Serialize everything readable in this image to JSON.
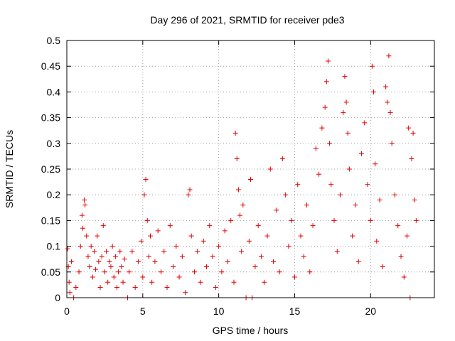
{
  "chart_data": {
    "type": "scatter",
    "title": "Day 296 of 2021, SRMTID for receiver pde3",
    "xlabel": "GPS time / hours",
    "ylabel": "SRMTID / TECUs",
    "xlim": [
      0,
      24.2
    ],
    "ylim": [
      0,
      0.5
    ],
    "grid": true,
    "x_ticks": [
      0,
      5,
      10,
      15,
      20
    ],
    "y_ticks": [
      0,
      0.05,
      0.1,
      0.15,
      0.2,
      0.25,
      0.3,
      0.35,
      0.4,
      0.45,
      0.5
    ],
    "y_tick_labels": [
      "0",
      "0.05",
      "0.1",
      "0.15",
      "0.2",
      "0.25",
      "0.3",
      "0.35",
      "0.4",
      "0.45",
      "0.5"
    ],
    "series": [
      {
        "name": "SRMTID",
        "color": "#e00000",
        "marker": "plus",
        "points": [
          [
            0.05,
            0.095
          ],
          [
            0.1,
            0.06
          ],
          [
            0.15,
            0.03
          ],
          [
            0.2,
            0.01
          ],
          [
            0.3,
            0.07
          ],
          [
            0.45,
            0.0
          ],
          [
            0.6,
            0.02
          ],
          [
            0.8,
            0.05
          ],
          [
            0.9,
            0.1
          ],
          [
            1.0,
            0.16
          ],
          [
            1.05,
            0.135
          ],
          [
            1.15,
            0.19
          ],
          [
            1.2,
            0.18
          ],
          [
            1.3,
            0.12
          ],
          [
            1.4,
            0.08
          ],
          [
            1.5,
            0.06
          ],
          [
            1.6,
            0.1
          ],
          [
            1.7,
            0.04
          ],
          [
            1.8,
            0.09
          ],
          [
            1.9,
            0.055
          ],
          [
            2.0,
            0.12
          ],
          [
            2.1,
            0.07
          ],
          [
            2.2,
            0.02
          ],
          [
            2.3,
            0.08
          ],
          [
            2.4,
            0.14
          ],
          [
            2.5,
            0.05
          ],
          [
            2.6,
            0.09
          ],
          [
            2.7,
            0.03
          ],
          [
            2.8,
            0.07
          ],
          [
            2.9,
            0.06
          ],
          [
            3.0,
            0.1
          ],
          [
            3.1,
            0.04
          ],
          [
            3.2,
            0.08
          ],
          [
            3.3,
            0.02
          ],
          [
            3.4,
            0.05
          ],
          [
            3.5,
            0.09
          ],
          [
            3.6,
            0.06
          ],
          [
            3.7,
            0.03
          ],
          [
            3.8,
            0.075
          ],
          [
            4.0,
            0.0
          ],
          [
            4.1,
            0.05
          ],
          [
            4.3,
            0.09
          ],
          [
            4.5,
            0.02
          ],
          [
            4.7,
            0.07
          ],
          [
            4.9,
            0.11
          ],
          [
            5.0,
            0.04
          ],
          [
            5.1,
            0.2
          ],
          [
            5.2,
            0.23
          ],
          [
            5.3,
            0.15
          ],
          [
            5.4,
            0.08
          ],
          [
            5.5,
            0.12
          ],
          [
            5.6,
            0.03
          ],
          [
            5.8,
            0.07
          ],
          [
            6.0,
            0.13
          ],
          [
            6.2,
            0.05
          ],
          [
            6.4,
            0.09
          ],
          [
            6.6,
            0.02
          ],
          [
            6.8,
            0.14
          ],
          [
            7.0,
            0.06
          ],
          [
            7.2,
            0.1
          ],
          [
            7.4,
            0.04
          ],
          [
            7.6,
            0.08
          ],
          [
            7.8,
            0.01
          ],
          [
            8.0,
            0.2
          ],
          [
            8.1,
            0.21
          ],
          [
            8.2,
            0.12
          ],
          [
            8.4,
            0.05
          ],
          [
            8.6,
            0.09
          ],
          [
            8.8,
            0.03
          ],
          [
            9.0,
            0.11
          ],
          [
            9.2,
            0.06
          ],
          [
            9.4,
            0.14
          ],
          [
            9.6,
            0.08
          ],
          [
            9.8,
            0.02
          ],
          [
            10.0,
            0.1
          ],
          [
            10.2,
            0.05
          ],
          [
            10.4,
            0.13
          ],
          [
            10.6,
            0.07
          ],
          [
            10.8,
            0.15
          ],
          [
            11.0,
            0.03
          ],
          [
            11.1,
            0.32
          ],
          [
            11.2,
            0.27
          ],
          [
            11.3,
            0.21
          ],
          [
            11.4,
            0.16
          ],
          [
            11.5,
            0.09
          ],
          [
            11.6,
            0.18
          ],
          [
            11.8,
            0.0
          ],
          [
            12.0,
            0.11
          ],
          [
            12.1,
            0.23
          ],
          [
            12.2,
            0.0
          ],
          [
            12.4,
            0.06
          ],
          [
            12.6,
            0.14
          ],
          [
            12.8,
            0.08
          ],
          [
            13.0,
            0.03
          ],
          [
            13.2,
            0.12
          ],
          [
            13.4,
            0.25
          ],
          [
            13.6,
            0.07
          ],
          [
            13.8,
            0.17
          ],
          [
            14.0,
            0.05
          ],
          [
            14.2,
            0.27
          ],
          [
            14.4,
            0.2
          ],
          [
            14.6,
            0.1
          ],
          [
            14.8,
            0.15
          ],
          [
            15.0,
            0.04
          ],
          [
            15.2,
            0.22
          ],
          [
            15.4,
            0.12
          ],
          [
            15.6,
            0.08
          ],
          [
            15.8,
            0.18
          ],
          [
            16.0,
            0.05
          ],
          [
            16.2,
            0.14
          ],
          [
            16.4,
            0.29
          ],
          [
            16.6,
            0.24
          ],
          [
            16.8,
            0.33
          ],
          [
            17.0,
            0.37
          ],
          [
            17.1,
            0.42
          ],
          [
            17.2,
            0.46
          ],
          [
            17.3,
            0.3
          ],
          [
            17.4,
            0.22
          ],
          [
            17.6,
            0.15
          ],
          [
            17.8,
            0.09
          ],
          [
            18.0,
            0.2
          ],
          [
            18.2,
            0.36
          ],
          [
            18.3,
            0.43
          ],
          [
            18.4,
            0.38
          ],
          [
            18.5,
            0.32
          ],
          [
            18.6,
            0.25
          ],
          [
            18.8,
            0.12
          ],
          [
            19.0,
            0.18
          ],
          [
            19.2,
            0.07
          ],
          [
            19.4,
            0.28
          ],
          [
            19.6,
            0.34
          ],
          [
            19.8,
            0.22
          ],
          [
            20.0,
            0.15
          ],
          [
            20.1,
            0.45
          ],
          [
            20.2,
            0.4
          ],
          [
            20.3,
            0.26
          ],
          [
            20.4,
            0.11
          ],
          [
            20.6,
            0.19
          ],
          [
            20.8,
            0.06
          ],
          [
            21.0,
            0.41
          ],
          [
            21.1,
            0.38
          ],
          [
            21.2,
            0.47
          ],
          [
            21.3,
            0.36
          ],
          [
            21.4,
            0.3
          ],
          [
            21.6,
            0.2
          ],
          [
            21.8,
            0.14
          ],
          [
            22.0,
            0.08
          ],
          [
            22.2,
            0.04
          ],
          [
            22.4,
            0.12
          ],
          [
            22.5,
            0.33
          ],
          [
            22.6,
            0.0
          ],
          [
            22.7,
            0.27
          ],
          [
            22.8,
            0.32
          ],
          [
            22.9,
            0.19
          ],
          [
            23.0,
            0.15
          ]
        ]
      }
    ]
  }
}
